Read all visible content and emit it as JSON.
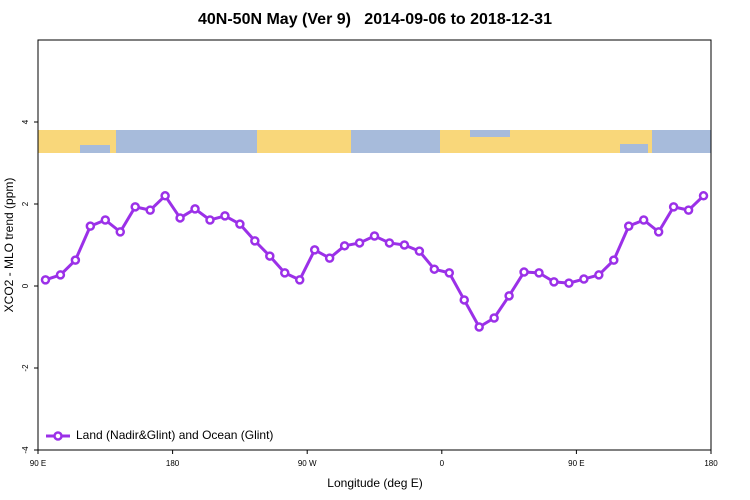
{
  "chart_data": {
    "type": "line",
    "title": "40N-50N May (Ver 9)   2014-09-06 to 2018-12-31",
    "x_label": "Longitude (deg E)",
    "y_label": "XCO2 - MLO trend (ppm)",
    "x": [
      95,
      105,
      115,
      125,
      135,
      145,
      155,
      165,
      175,
      185,
      195,
      205,
      215,
      225,
      235,
      245,
      255,
      265,
      275,
      285,
      295,
      305,
      315,
      325,
      335,
      345,
      355,
      365,
      375,
      385,
      395,
      405,
      415,
      425,
      435,
      445,
      455,
      465,
      475,
      485,
      495,
      505,
      515,
      525,
      535
    ],
    "series": [
      {
        "name": "Land (Nadir&Glint) and Ocean (Glint)",
        "color": "#9b30e8",
        "values": [
          0.15,
          0.27,
          0.63,
          1.46,
          1.61,
          1.32,
          1.93,
          1.85,
          2.2,
          1.66,
          1.88,
          1.61,
          1.71,
          1.51,
          1.1,
          0.73,
          0.32,
          0.15,
          0.88,
          0.68,
          0.98,
          1.05,
          1.22,
          1.05,
          1.0,
          0.85,
          0.41,
          0.32,
          -0.34,
          -1.0,
          -0.78,
          -0.24,
          0.34,
          0.32,
          0.1,
          0.07,
          0.17,
          0.27,
          0.63,
          1.46,
          1.61,
          1.32,
          1.93,
          1.85,
          2.2
        ]
      }
    ],
    "xlim": [
      90,
      540
    ],
    "xticks": [
      {
        "value": 90,
        "label": "90 E"
      },
      180,
      {
        "value": 270,
        "label": "90 W"
      },
      {
        "value": 360,
        "label": "0"
      },
      {
        "value": 450,
        "label": "90 E"
      },
      {
        "value": 540,
        "label": "180"
      }
    ],
    "ylim": [
      -4,
      6
    ],
    "yticks": [
      -4,
      -2,
      0,
      2,
      4
    ],
    "legend": "bottom-left"
  }
}
